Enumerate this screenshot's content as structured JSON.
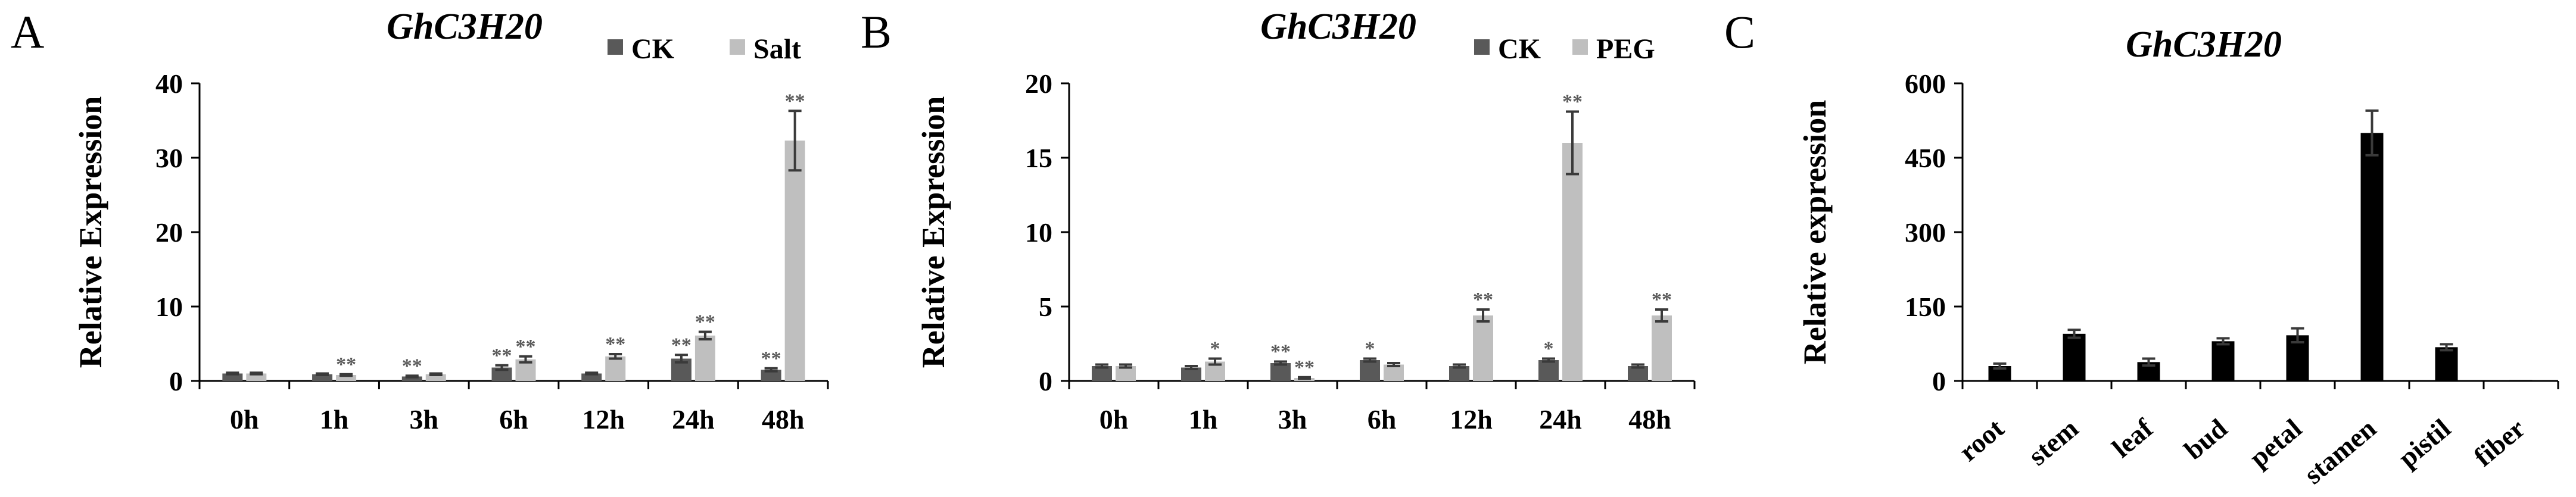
{
  "colors": {
    "ck": "#595959",
    "treatment": "#bfbfbf",
    "tissue": "#000000"
  },
  "chart_data": [
    {
      "type": "bar",
      "panel": "A",
      "title": "GhC3H20",
      "ylabel": "Relative Expression",
      "xlabel": "",
      "ylim": [
        0,
        40
      ],
      "yticks": [
        0,
        10,
        20,
        30,
        40
      ],
      "legend_position": "top-right",
      "categories": [
        "0h",
        "1h",
        "3h",
        "6h",
        "12h",
        "24h",
        "48h"
      ],
      "series": [
        {
          "name": "CK",
          "color_key": "ck",
          "values": [
            1.0,
            0.9,
            0.6,
            1.8,
            1.0,
            3.0,
            1.5
          ],
          "errors": [
            0.1,
            0.1,
            0.1,
            0.3,
            0.1,
            0.5,
            0.2
          ],
          "marks": [
            "",
            "",
            "**",
            "**",
            "",
            "**",
            "**"
          ]
        },
        {
          "name": "Salt",
          "color_key": "treatment",
          "values": [
            1.0,
            0.8,
            0.9,
            2.9,
            3.3,
            6.1,
            32.3
          ],
          "errors": [
            0.1,
            0.1,
            0.1,
            0.4,
            0.3,
            0.5,
            4.0
          ],
          "marks": [
            "",
            "**",
            "",
            "**",
            "**",
            "**",
            "**"
          ]
        }
      ]
    },
    {
      "type": "bar",
      "panel": "B",
      "title": "GhC3H20",
      "ylabel": "Relative Expression",
      "xlabel": "",
      "ylim": [
        0,
        20
      ],
      "yticks": [
        0,
        5,
        10,
        15,
        20
      ],
      "legend_position": "top-right",
      "categories": [
        "0h",
        "1h",
        "3h",
        "6h",
        "12h",
        "24h",
        "48h"
      ],
      "series": [
        {
          "name": "CK",
          "color_key": "ck",
          "values": [
            1.0,
            0.9,
            1.2,
            1.4,
            1.0,
            1.4,
            1.0
          ],
          "errors": [
            0.1,
            0.1,
            0.1,
            0.1,
            0.1,
            0.1,
            0.1
          ],
          "marks": [
            "",
            "",
            "**",
            "*",
            "",
            "*",
            ""
          ]
        },
        {
          "name": "PEG",
          "color_key": "treatment",
          "values": [
            1.0,
            1.3,
            0.2,
            1.1,
            4.4,
            16.0,
            4.4
          ],
          "errors": [
            0.1,
            0.2,
            0.05,
            0.1,
            0.4,
            2.1,
            0.4
          ],
          "marks": [
            "",
            "*",
            "**",
            "",
            "**",
            "**",
            "**"
          ]
        }
      ]
    },
    {
      "type": "bar",
      "panel": "C",
      "title": "GhC3H20",
      "ylabel": "Relative expression",
      "xlabel": "",
      "ylim": [
        0,
        600
      ],
      "yticks": [
        0,
        150,
        300,
        450,
        600
      ],
      "categories": [
        "root",
        "stem",
        "leaf",
        "bud",
        "petal",
        "stamen",
        "pistil",
        "fiber"
      ],
      "series": [
        {
          "color_key": "tissue",
          "values": [
            30,
            95,
            38,
            80,
            92,
            500,
            68,
            2
          ],
          "errors": [
            5,
            8,
            7,
            6,
            14,
            45,
            6,
            0
          ],
          "marks": [
            "",
            "",
            "",
            "",
            "",
            "",
            "",
            ""
          ]
        }
      ]
    }
  ]
}
